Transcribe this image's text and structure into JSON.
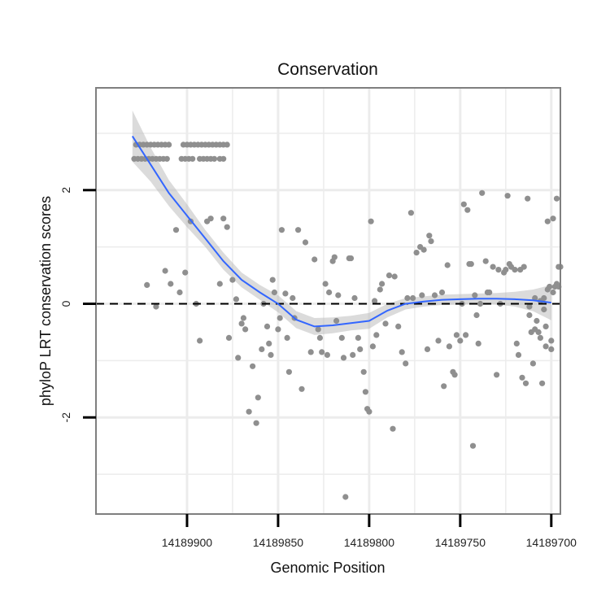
{
  "chart_data": {
    "type": "scatter",
    "title": "Conservation",
    "xlabel": "Genomic Position",
    "ylabel": "phyloP LRT conservation scores",
    "x_reversed": true,
    "xlim": [
      14189695,
      14189950
    ],
    "ylim": [
      -3.7,
      3.8
    ],
    "x_ticks": [
      14189900,
      14189850,
      14189800,
      14189750,
      14189700
    ],
    "x_tick_labels": [
      "14189900",
      "14189850",
      "14189800",
      "14189750",
      "14189700"
    ],
    "y_ticks": [
      -2,
      0,
      2
    ],
    "y_tick_labels": [
      "-2",
      "0",
      "2"
    ],
    "reference_line": {
      "y": 0,
      "style": "dashed",
      "color": "#000000"
    },
    "colors": {
      "points": "#8f8f8f",
      "smooth": "#3366ff",
      "ribbon": "#bdbdbd",
      "panel_border": "#7f7f7f",
      "grid": "#ececec"
    },
    "smooth": {
      "x": [
        14189930,
        14189920,
        14189910,
        14189900,
        14189890,
        14189880,
        14189870,
        14189860,
        14189850,
        14189840,
        14189830,
        14189820,
        14189810,
        14189800,
        14189790,
        14189780,
        14189770,
        14189760,
        14189750,
        14189740,
        14189730,
        14189720,
        14189710,
        14189700
      ],
      "y": [
        2.95,
        2.45,
        1.95,
        1.55,
        1.15,
        0.75,
        0.42,
        0.2,
        0.0,
        -0.28,
        -0.4,
        -0.38,
        -0.34,
        -0.3,
        -0.12,
        0.0,
        0.04,
        0.07,
        0.08,
        0.09,
        0.09,
        0.08,
        0.06,
        0.02
      ],
      "upper": [
        3.4,
        2.75,
        2.18,
        1.75,
        1.3,
        0.9,
        0.55,
        0.33,
        0.15,
        -0.13,
        -0.25,
        -0.24,
        -0.21,
        -0.16,
        0.0,
        0.1,
        0.13,
        0.16,
        0.17,
        0.18,
        0.19,
        0.21,
        0.25,
        0.33
      ],
      "lower": [
        2.5,
        2.15,
        1.72,
        1.35,
        1.0,
        0.6,
        0.29,
        0.07,
        -0.15,
        -0.43,
        -0.55,
        -0.52,
        -0.47,
        -0.44,
        -0.24,
        -0.1,
        -0.05,
        -0.02,
        -0.01,
        0.0,
        -0.01,
        -0.05,
        -0.13,
        -0.29
      ]
    },
    "points": [
      {
        "x": 14189929,
        "y": 2.55
      },
      {
        "x": 14189927,
        "y": 2.55
      },
      {
        "x": 14189925,
        "y": 2.55
      },
      {
        "x": 14189923,
        "y": 2.55
      },
      {
        "x": 14189921,
        "y": 2.55
      },
      {
        "x": 14189919,
        "y": 2.55
      },
      {
        "x": 14189917,
        "y": 2.55
      },
      {
        "x": 14189915,
        "y": 2.55
      },
      {
        "x": 14189913,
        "y": 2.55
      },
      {
        "x": 14189911,
        "y": 2.55
      },
      {
        "x": 14189903,
        "y": 2.55
      },
      {
        "x": 14189901,
        "y": 2.55
      },
      {
        "x": 14189899,
        "y": 2.55
      },
      {
        "x": 14189897,
        "y": 2.55
      },
      {
        "x": 14189893,
        "y": 2.55
      },
      {
        "x": 14189891,
        "y": 2.55
      },
      {
        "x": 14189889,
        "y": 2.55
      },
      {
        "x": 14189887,
        "y": 2.55
      },
      {
        "x": 14189885,
        "y": 2.55
      },
      {
        "x": 14189882,
        "y": 2.55
      },
      {
        "x": 14189880,
        "y": 2.55
      },
      {
        "x": 14189928,
        "y": 2.8
      },
      {
        "x": 14189926,
        "y": 2.8
      },
      {
        "x": 14189924,
        "y": 2.8
      },
      {
        "x": 14189922,
        "y": 2.8
      },
      {
        "x": 14189920,
        "y": 2.8
      },
      {
        "x": 14189918,
        "y": 2.8
      },
      {
        "x": 14189916,
        "y": 2.8
      },
      {
        "x": 14189914,
        "y": 2.8
      },
      {
        "x": 14189912,
        "y": 2.8
      },
      {
        "x": 14189910,
        "y": 2.8
      },
      {
        "x": 14189902,
        "y": 2.8
      },
      {
        "x": 14189900,
        "y": 2.8
      },
      {
        "x": 14189898,
        "y": 2.8
      },
      {
        "x": 14189896,
        "y": 2.8
      },
      {
        "x": 14189894,
        "y": 2.8
      },
      {
        "x": 14189892,
        "y": 2.8
      },
      {
        "x": 14189890,
        "y": 2.8
      },
      {
        "x": 14189888,
        "y": 2.8
      },
      {
        "x": 14189886,
        "y": 2.8
      },
      {
        "x": 14189884,
        "y": 2.8
      },
      {
        "x": 14189882,
        "y": 2.8
      },
      {
        "x": 14189880,
        "y": 2.8
      },
      {
        "x": 14189878,
        "y": 2.8
      },
      {
        "x": 14189922,
        "y": 0.33
      },
      {
        "x": 14189917,
        "y": -0.05
      },
      {
        "x": 14189912,
        "y": 0.58
      },
      {
        "x": 14189909,
        "y": 0.35
      },
      {
        "x": 14189906,
        "y": 1.3
      },
      {
        "x": 14189904,
        "y": 0.2
      },
      {
        "x": 14189901,
        "y": 0.55
      },
      {
        "x": 14189898,
        "y": 1.45
      },
      {
        "x": 14189895,
        "y": 0.0
      },
      {
        "x": 14189893,
        "y": -0.65
      },
      {
        "x": 14189889,
        "y": 1.45
      },
      {
        "x": 14189887,
        "y": 1.5
      },
      {
        "x": 14189882,
        "y": 0.35
      },
      {
        "x": 14189880,
        "y": 1.5
      },
      {
        "x": 14189878,
        "y": 1.35
      },
      {
        "x": 14189877,
        "y": -0.6
      },
      {
        "x": 14189875,
        "y": 0.42
      },
      {
        "x": 14189873,
        "y": 0.08
      },
      {
        "x": 14189872,
        "y": -0.95
      },
      {
        "x": 14189870,
        "y": -0.35
      },
      {
        "x": 14189869,
        "y": -0.25
      },
      {
        "x": 14189868,
        "y": -0.45
      },
      {
        "x": 14189866,
        "y": -1.9
      },
      {
        "x": 14189864,
        "y": -1.1
      },
      {
        "x": 14189862,
        "y": -2.1
      },
      {
        "x": 14189861,
        "y": -1.65
      },
      {
        "x": 14189859,
        "y": -0.8
      },
      {
        "x": 14189858,
        "y": 0.0
      },
      {
        "x": 14189856,
        "y": -0.4
      },
      {
        "x": 14189855,
        "y": -0.7
      },
      {
        "x": 14189854,
        "y": -0.9
      },
      {
        "x": 14189853,
        "y": 0.42
      },
      {
        "x": 14189852,
        "y": 0.2
      },
      {
        "x": 14189850,
        "y": -0.45
      },
      {
        "x": 14189849,
        "y": -0.25
      },
      {
        "x": 14189848,
        "y": 1.3
      },
      {
        "x": 14189846,
        "y": 0.18
      },
      {
        "x": 14189845,
        "y": -0.6
      },
      {
        "x": 14189844,
        "y": -1.2
      },
      {
        "x": 14189842,
        "y": 0.1
      },
      {
        "x": 14189841,
        "y": -0.25
      },
      {
        "x": 14189839,
        "y": 1.3
      },
      {
        "x": 14189837,
        "y": -1.5
      },
      {
        "x": 14189835,
        "y": 1.08
      },
      {
        "x": 14189832,
        "y": -0.85
      },
      {
        "x": 14189830,
        "y": 0.78
      },
      {
        "x": 14189828,
        "y": -0.45
      },
      {
        "x": 14189827,
        "y": -0.6
      },
      {
        "x": 14189826,
        "y": -0.85
      },
      {
        "x": 14189824,
        "y": 0.35
      },
      {
        "x": 14189823,
        "y": -0.9
      },
      {
        "x": 14189822,
        "y": 0.2
      },
      {
        "x": 14189820,
        "y": 0.75
      },
      {
        "x": 14189819,
        "y": 0.82
      },
      {
        "x": 14189818,
        "y": -0.3
      },
      {
        "x": 14189817,
        "y": 0.15
      },
      {
        "x": 14189815,
        "y": -0.6
      },
      {
        "x": 14189814,
        "y": -0.95
      },
      {
        "x": 14189813,
        "y": -3.4
      },
      {
        "x": 14189811,
        "y": 0.8
      },
      {
        "x": 14189810,
        "y": 0.8
      },
      {
        "x": 14189809,
        "y": -0.9
      },
      {
        "x": 14189808,
        "y": 0.1
      },
      {
        "x": 14189806,
        "y": -0.6
      },
      {
        "x": 14189805,
        "y": -0.8
      },
      {
        "x": 14189803,
        "y": -1.2
      },
      {
        "x": 14189802,
        "y": -1.55
      },
      {
        "x": 14189801,
        "y": -1.85
      },
      {
        "x": 14189800,
        "y": -1.9
      },
      {
        "x": 14189799,
        "y": 1.45
      },
      {
        "x": 14189798,
        "y": -0.75
      },
      {
        "x": 14189797,
        "y": 0.05
      },
      {
        "x": 14189796,
        "y": -0.55
      },
      {
        "x": 14189794,
        "y": 0.25
      },
      {
        "x": 14189793,
        "y": 0.35
      },
      {
        "x": 14189791,
        "y": -0.35
      },
      {
        "x": 14189789,
        "y": 0.5
      },
      {
        "x": 14189787,
        "y": -2.2
      },
      {
        "x": 14189786,
        "y": 0.48
      },
      {
        "x": 14189784,
        "y": -0.4
      },
      {
        "x": 14189782,
        "y": -0.85
      },
      {
        "x": 14189780,
        "y": -1.05
      },
      {
        "x": 14189779,
        "y": 0.1
      },
      {
        "x": 14189777,
        "y": 1.6
      },
      {
        "x": 14189776,
        "y": 0.1
      },
      {
        "x": 14189774,
        "y": 0.9
      },
      {
        "x": 14189772,
        "y": 1.0
      },
      {
        "x": 14189771,
        "y": 0.15
      },
      {
        "x": 14189770,
        "y": 0.95
      },
      {
        "x": 14189768,
        "y": -0.8
      },
      {
        "x": 14189767,
        "y": 1.2
      },
      {
        "x": 14189766,
        "y": 1.1
      },
      {
        "x": 14189764,
        "y": 0.15
      },
      {
        "x": 14189762,
        "y": -0.65
      },
      {
        "x": 14189760,
        "y": 0.2
      },
      {
        "x": 14189759,
        "y": -1.45
      },
      {
        "x": 14189757,
        "y": 0.68
      },
      {
        "x": 14189756,
        "y": -0.75
      },
      {
        "x": 14189754,
        "y": -1.2
      },
      {
        "x": 14189753,
        "y": -1.25
      },
      {
        "x": 14189752,
        "y": -0.55
      },
      {
        "x": 14189750,
        "y": -0.65
      },
      {
        "x": 14189749,
        "y": 0.0
      },
      {
        "x": 14189748,
        "y": 1.75
      },
      {
        "x": 14189747,
        "y": -0.55
      },
      {
        "x": 14189746,
        "y": 1.65
      },
      {
        "x": 14189745,
        "y": 0.7
      },
      {
        "x": 14189744,
        "y": 0.7
      },
      {
        "x": 14189743,
        "y": -2.5
      },
      {
        "x": 14189742,
        "y": 0.15
      },
      {
        "x": 14189741,
        "y": -0.2
      },
      {
        "x": 14189740,
        "y": -0.7
      },
      {
        "x": 14189739,
        "y": 0.0
      },
      {
        "x": 14189738,
        "y": 1.95
      },
      {
        "x": 14189736,
        "y": 0.75
      },
      {
        "x": 14189735,
        "y": 0.2
      },
      {
        "x": 14189734,
        "y": 0.2
      },
      {
        "x": 14189732,
        "y": 0.65
      },
      {
        "x": 14189730,
        "y": -1.25
      },
      {
        "x": 14189729,
        "y": 0.6
      },
      {
        "x": 14189728,
        "y": 0.0
      },
      {
        "x": 14189726,
        "y": 0.55
      },
      {
        "x": 14189725,
        "y": 0.6
      },
      {
        "x": 14189724,
        "y": 1.9
      },
      {
        "x": 14189723,
        "y": 0.7
      },
      {
        "x": 14189722,
        "y": 0.65
      },
      {
        "x": 14189720,
        "y": 0.6
      },
      {
        "x": 14189719,
        "y": -0.7
      },
      {
        "x": 14189718,
        "y": -0.9
      },
      {
        "x": 14189717,
        "y": 0.6
      },
      {
        "x": 14189716,
        "y": -1.3
      },
      {
        "x": 14189715,
        "y": 0.65
      },
      {
        "x": 14189714,
        "y": -1.4
      },
      {
        "x": 14189713,
        "y": 1.85
      },
      {
        "x": 14189712,
        "y": -0.2
      },
      {
        "x": 14189711,
        "y": -0.5
      },
      {
        "x": 14189710,
        "y": -1.05
      },
      {
        "x": 14189709,
        "y": 0.1
      },
      {
        "x": 14189708,
        "y": -0.3
      },
      {
        "x": 14189707,
        "y": -0.5
      },
      {
        "x": 14189706,
        "y": 0.05
      },
      {
        "x": 14189705,
        "y": -1.4
      },
      {
        "x": 14189704,
        "y": 0.1
      },
      {
        "x": 14189703,
        "y": -0.75
      },
      {
        "x": 14189702,
        "y": 0.25
      },
      {
        "x": 14189701,
        "y": 0.3
      },
      {
        "x": 14189700,
        "y": -0.8
      },
      {
        "x": 14189699,
        "y": 0.2
      },
      {
        "x": 14189698,
        "y": 0.3
      },
      {
        "x": 14189697,
        "y": 0.35
      },
      {
        "x": 14189696,
        "y": 0.3
      },
      {
        "x": 14189712,
        "y": -0.05
      },
      {
        "x": 14189709,
        "y": -0.45
      },
      {
        "x": 14189706,
        "y": -0.6
      },
      {
        "x": 14189704,
        "y": -0.1
      },
      {
        "x": 14189703,
        "y": -0.4
      },
      {
        "x": 14189702,
        "y": 1.45
      },
      {
        "x": 14189700,
        "y": -0.65
      },
      {
        "x": 14189699,
        "y": 1.5
      },
      {
        "x": 14189697,
        "y": 1.85
      },
      {
        "x": 14189696,
        "y": 0.65
      },
      {
        "x": 14189695,
        "y": 0.65
      },
      {
        "x": 14189694,
        "y": -0.35
      },
      {
        "x": 14189693,
        "y": -1.15
      }
    ]
  }
}
